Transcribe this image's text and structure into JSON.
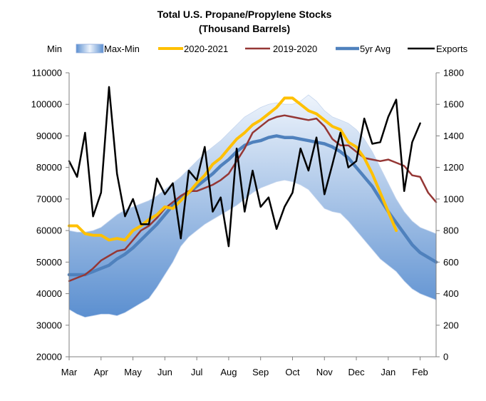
{
  "chart_data": {
    "type": "line",
    "title": "Total U.S. Propane/Propylene Stocks",
    "subtitle": "(Thousand Barrels)",
    "x_ticks": [
      "Mar",
      "Apr",
      "May",
      "Jun",
      "Jul",
      "Aug",
      "Sep",
      "Oct",
      "Nov",
      "Dec",
      "Jan",
      "Feb"
    ],
    "x_range": [
      0,
      11.5
    ],
    "y_left": {
      "ylim": [
        20000,
        110000
      ],
      "ticks": [
        "20000",
        "30000",
        "40000",
        "50000",
        "60000",
        "70000",
        "80000",
        "90000",
        "100000",
        "110000"
      ]
    },
    "y_right": {
      "ylim": [
        0,
        1800
      ],
      "ticks": [
        "0",
        "200",
        "400",
        "600",
        "800",
        "1000",
        "1200",
        "1400",
        "1600",
        "1800"
      ]
    },
    "legend": [
      "Min",
      "Max-Min",
      "2020-2021",
      "2019-2020",
      "5yr Avg",
      "Exports"
    ],
    "colors": {
      "band_dark": "#5b8fd0",
      "band_light": "#eef4fc",
      "y2020_2021": "#ffc000",
      "y2019_2020": "#953735",
      "avg5": "#4f81bd",
      "exports": "#000000",
      "axis": "#808080",
      "text": "#000000"
    },
    "series": [
      {
        "name": "Max",
        "axis": "left",
        "x": [
          0,
          0.25,
          0.5,
          0.75,
          1,
          1.25,
          1.5,
          1.75,
          2,
          2.25,
          2.5,
          2.75,
          3,
          3.25,
          3.5,
          3.75,
          4,
          4.25,
          4.5,
          4.75,
          5,
          5.25,
          5.5,
          5.75,
          6,
          6.25,
          6.5,
          6.75,
          7,
          7.25,
          7.5,
          7.75,
          8,
          8.25,
          8.5,
          8.75,
          9,
          9.25,
          9.5,
          9.75,
          10,
          10.25,
          10.5,
          10.75,
          11,
          11.25,
          11.5
        ],
        "values": [
          60000,
          59500,
          59500,
          60000,
          61000,
          63000,
          65000,
          66500,
          67500,
          68500,
          69500,
          71000,
          73000,
          75000,
          77000,
          79500,
          82000,
          84500,
          86500,
          88500,
          91000,
          93500,
          96000,
          97500,
          99000,
          100000,
          100500,
          100000,
          100000,
          101000,
          103000,
          101000,
          98000,
          96000,
          95000,
          94000,
          92000,
          89000,
          85000,
          80000,
          75000,
          70000,
          66000,
          63000,
          61000,
          60000,
          59000
        ]
      },
      {
        "name": "Min",
        "axis": "left",
        "x": [
          0,
          0.25,
          0.5,
          0.75,
          1,
          1.25,
          1.5,
          1.75,
          2,
          2.25,
          2.5,
          2.75,
          3,
          3.25,
          3.5,
          3.75,
          4,
          4.25,
          4.5,
          4.75,
          5,
          5.25,
          5.5,
          5.75,
          6,
          6.25,
          6.5,
          6.75,
          7,
          7.25,
          7.5,
          7.75,
          8,
          8.25,
          8.5,
          8.75,
          9,
          9.25,
          9.5,
          9.75,
          10,
          10.25,
          10.5,
          10.75,
          11,
          11.25,
          11.5
        ],
        "values": [
          35000,
          33500,
          32500,
          33000,
          33500,
          33500,
          33000,
          34000,
          35500,
          37000,
          38500,
          42000,
          46000,
          50000,
          55000,
          58000,
          60000,
          62000,
          63500,
          65000,
          66500,
          68000,
          70000,
          72000,
          73500,
          74500,
          75500,
          76000,
          75500,
          74500,
          73000,
          70000,
          67000,
          66000,
          65500,
          63000,
          60000,
          57000,
          54000,
          51000,
          49000,
          47000,
          44000,
          41500,
          40000,
          39000,
          38000
        ]
      },
      {
        "name": "2020-2021",
        "axis": "left",
        "x": [
          0,
          0.25,
          0.5,
          0.75,
          1,
          1.25,
          1.5,
          1.75,
          2,
          2.25,
          2.5,
          2.75,
          3,
          3.25,
          3.5,
          3.75,
          4,
          4.25,
          4.5,
          4.75,
          5,
          5.25,
          5.5,
          5.75,
          6,
          6.25,
          6.5,
          6.75,
          7,
          7.25,
          7.5,
          7.75,
          8,
          8.25,
          8.5,
          8.75,
          9,
          9.25,
          9.5,
          9.75,
          10,
          10.25
        ],
        "values": [
          61500,
          61500,
          59000,
          58500,
          58500,
          57000,
          57500,
          57000,
          60000,
          61500,
          63500,
          65000,
          67500,
          67000,
          69500,
          72000,
          75000,
          77500,
          81000,
          83000,
          86000,
          89000,
          91000,
          93500,
          95000,
          97000,
          99000,
          102000,
          102000,
          100000,
          98000,
          97000,
          95000,
          93000,
          92000,
          88000,
          86500,
          83000,
          78000,
          72000,
          66000,
          60000
        ]
      },
      {
        "name": "2019-2020",
        "axis": "left",
        "x": [
          0,
          0.25,
          0.5,
          0.75,
          1,
          1.25,
          1.5,
          1.75,
          2,
          2.25,
          2.5,
          2.75,
          3,
          3.25,
          3.5,
          3.75,
          4,
          4.25,
          4.5,
          4.75,
          5,
          5.25,
          5.5,
          5.75,
          6,
          6.25,
          6.5,
          6.75,
          7,
          7.25,
          7.5,
          7.75,
          8,
          8.25,
          8.5,
          8.75,
          9,
          9.25,
          9.5,
          9.75,
          10,
          10.25,
          10.5,
          10.75,
          11,
          11.25,
          11.5
        ],
        "values": [
          44000,
          45000,
          46000,
          48000,
          50500,
          52000,
          53500,
          54000,
          57000,
          60000,
          61500,
          64000,
          67000,
          69000,
          71000,
          72500,
          72500,
          73500,
          74500,
          76000,
          78000,
          82000,
          86000,
          91000,
          93000,
          95000,
          96000,
          96500,
          96000,
          95500,
          95000,
          95500,
          93000,
          89000,
          87000,
          87000,
          85000,
          83000,
          82500,
          82000,
          82500,
          81500,
          80500,
          77500,
          77000,
          72000,
          69000
        ]
      },
      {
        "name": "5yr Avg",
        "axis": "left",
        "x": [
          0,
          0.25,
          0.5,
          0.75,
          1,
          1.25,
          1.5,
          1.75,
          2,
          2.25,
          2.5,
          2.75,
          3,
          3.25,
          3.5,
          3.75,
          4,
          4.25,
          4.5,
          4.75,
          5,
          5.25,
          5.5,
          5.75,
          6,
          6.25,
          6.5,
          6.75,
          7,
          7.25,
          7.5,
          7.75,
          8,
          8.25,
          8.5,
          8.75,
          9,
          9.25,
          9.5,
          9.75,
          10,
          10.25,
          10.5,
          10.75,
          11,
          11.25,
          11.5
        ],
        "values": [
          46000,
          46000,
          46000,
          47000,
          48000,
          49000,
          51000,
          52500,
          54500,
          57000,
          59500,
          62000,
          65000,
          68000,
          70000,
          72000,
          74000,
          76000,
          78000,
          80500,
          82500,
          85000,
          87000,
          88000,
          88500,
          89500,
          90000,
          89500,
          89500,
          89000,
          88500,
          88000,
          87500,
          86500,
          85000,
          83000,
          80000,
          77000,
          74000,
          70000,
          66000,
          62500,
          59000,
          55500,
          53000,
          51500,
          50000
        ]
      },
      {
        "name": "Exports",
        "axis": "right",
        "x": [
          0,
          0.25,
          0.5,
          0.75,
          1,
          1.25,
          1.5,
          1.75,
          2,
          2.25,
          2.5,
          2.75,
          3,
          3.25,
          3.5,
          3.75,
          4,
          4.25,
          4.5,
          4.75,
          5,
          5.25,
          5.5,
          5.75,
          6,
          6.25,
          6.5,
          6.75,
          7,
          7.25,
          7.5,
          7.75,
          8,
          8.25,
          8.5,
          8.75,
          9,
          9.25,
          9.5,
          9.75,
          10,
          10.25,
          10.5,
          10.75,
          11
        ],
        "values": [
          1240,
          1140,
          1420,
          890,
          1040,
          1710,
          1160,
          890,
          1000,
          840,
          840,
          1130,
          1030,
          1100,
          750,
          1180,
          1120,
          1330,
          920,
          1010,
          700,
          1320,
          920,
          1180,
          950,
          1010,
          810,
          950,
          1040,
          1320,
          1180,
          1390,
          1030,
          1220,
          1420,
          1200,
          1240,
          1510,
          1350,
          1360,
          1520,
          1630,
          1050,
          1360,
          1480
        ]
      }
    ]
  }
}
